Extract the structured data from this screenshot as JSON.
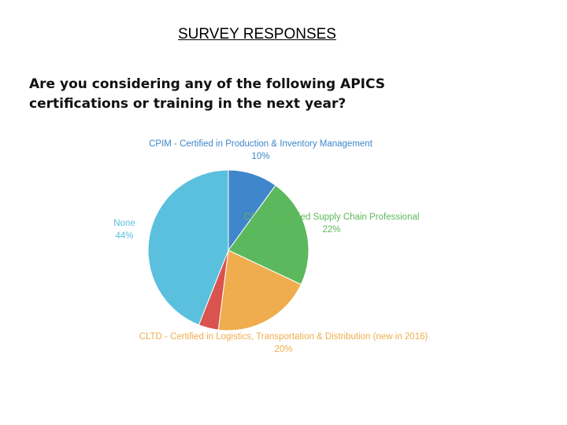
{
  "page": {
    "title": "SURVEY RESPONSES",
    "question": "Are you considering any of the following APICS certifications or training in the next year?"
  },
  "chart_data": {
    "type": "pie",
    "slices": [
      {
        "name": "CPIM - Certified in Production & Inventory Management",
        "value": 10,
        "label": "10%",
        "color": "#3f86ca"
      },
      {
        "name": "CSCP - Certified Supply Chain Professional",
        "value": 22,
        "label": "22%",
        "color": "#5cb85c"
      },
      {
        "name": "CLTD - Certified in Logistics, Transportation & Distribution (new in 2016)",
        "value": 20,
        "label": "20%",
        "color": "#f0ad4e"
      },
      {
        "name": "",
        "value": 4,
        "label": "",
        "color": "#d9534f"
      },
      {
        "name": "None",
        "value": 44,
        "label": "44%",
        "color": "#5bc0de"
      }
    ]
  }
}
